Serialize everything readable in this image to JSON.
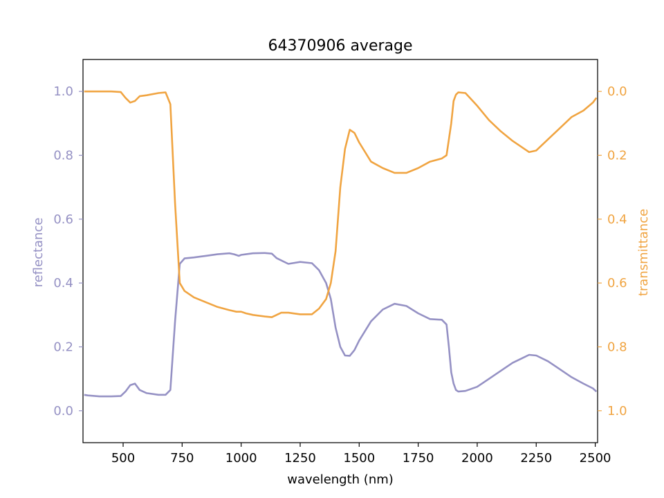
{
  "chart_data": {
    "type": "line",
    "title": "64370906 average",
    "xlabel": "wavelength (nm)",
    "ylabel_left": "reflectance",
    "ylabel_right": "transmittance",
    "xlim": [
      330,
      2510
    ],
    "ylim_left": [
      -0.1,
      1.1
    ],
    "ylim_right": [
      1.1,
      -0.1
    ],
    "x_ticks": [
      500,
      750,
      1000,
      1250,
      1500,
      1750,
      2000,
      2250,
      2500
    ],
    "y_left_ticks": [
      0.0,
      0.2,
      0.4,
      0.6,
      0.8,
      1.0
    ],
    "y_right_ticks": [
      0.0,
      0.2,
      0.4,
      0.6,
      0.8,
      1.0
    ],
    "x_tick_labels": [
      "500",
      "750",
      "1000",
      "1250",
      "1500",
      "1750",
      "2000",
      "2250",
      "2500"
    ],
    "y_left_tick_labels": [
      "0.0",
      "0.2",
      "0.4",
      "0.6",
      "0.8",
      "1.0"
    ],
    "y_right_tick_labels": [
      "0.0",
      "0.2",
      "0.4",
      "0.6",
      "0.8",
      "1.0"
    ],
    "grid": false,
    "colors": {
      "reflectance": "#9591c4",
      "transmittance": "#f0a441",
      "text": "#000000"
    },
    "series": [
      {
        "axis": "left",
        "x": [
          335,
          350,
          400,
          450,
          490,
          510,
          530,
          550,
          570,
          600,
          650,
          680,
          700,
          720,
          740,
          760,
          800,
          850,
          900,
          950,
          970,
          990,
          1000,
          1020,
          1050,
          1100,
          1130,
          1150,
          1200,
          1250,
          1300,
          1330,
          1360,
          1380,
          1400,
          1420,
          1440,
          1460,
          1480,
          1500,
          1550,
          1600,
          1650,
          1700,
          1750,
          1800,
          1850,
          1870,
          1880,
          1890,
          1900,
          1910,
          1920,
          1950,
          2000,
          2050,
          2100,
          2150,
          2200,
          2220,
          2250,
          2300,
          2350,
          2400,
          2450,
          2490,
          2505
        ],
        "y": [
          0.05,
          0.048,
          0.045,
          0.045,
          0.046,
          0.06,
          0.08,
          0.085,
          0.065,
          0.055,
          0.05,
          0.05,
          0.065,
          0.28,
          0.46,
          0.477,
          0.48,
          0.485,
          0.49,
          0.493,
          0.49,
          0.485,
          0.488,
          0.49,
          0.493,
          0.494,
          0.492,
          0.478,
          0.46,
          0.466,
          0.462,
          0.44,
          0.4,
          0.35,
          0.26,
          0.2,
          0.173,
          0.172,
          0.19,
          0.22,
          0.28,
          0.317,
          0.335,
          0.328,
          0.305,
          0.287,
          0.285,
          0.27,
          0.2,
          0.12,
          0.085,
          0.065,
          0.06,
          0.062,
          0.075,
          0.1,
          0.125,
          0.15,
          0.168,
          0.175,
          0.173,
          0.155,
          0.13,
          0.105,
          0.085,
          0.07,
          0.06
        ]
      },
      {
        "axis": "right",
        "x": [
          335,
          350,
          400,
          450,
          490,
          510,
          530,
          550,
          570,
          600,
          650,
          680,
          700,
          720,
          740,
          760,
          800,
          850,
          900,
          950,
          980,
          1000,
          1020,
          1050,
          1100,
          1130,
          1150,
          1170,
          1200,
          1250,
          1300,
          1330,
          1360,
          1380,
          1400,
          1420,
          1440,
          1460,
          1480,
          1500,
          1550,
          1600,
          1650,
          1700,
          1750,
          1800,
          1850,
          1870,
          1880,
          1890,
          1900,
          1910,
          1920,
          1950,
          2000,
          2050,
          2100,
          2150,
          2200,
          2220,
          2250,
          2300,
          2350,
          2400,
          2450,
          2490,
          2505
        ],
        "y": [
          0.0,
          0.0,
          0.0,
          0.0,
          0.002,
          0.02,
          0.035,
          0.03,
          0.015,
          0.012,
          0.005,
          0.003,
          0.04,
          0.35,
          0.6,
          0.625,
          0.645,
          0.66,
          0.675,
          0.685,
          0.69,
          0.69,
          0.695,
          0.7,
          0.705,
          0.707,
          0.7,
          0.693,
          0.693,
          0.698,
          0.698,
          0.68,
          0.65,
          0.6,
          0.5,
          0.3,
          0.18,
          0.12,
          0.13,
          0.16,
          0.22,
          0.24,
          0.255,
          0.255,
          0.24,
          0.22,
          0.21,
          0.2,
          0.15,
          0.1,
          0.03,
          0.01,
          0.003,
          0.005,
          0.045,
          0.09,
          0.125,
          0.155,
          0.18,
          0.19,
          0.185,
          0.15,
          0.115,
          0.08,
          0.06,
          0.035,
          0.02
        ]
      }
    ]
  }
}
